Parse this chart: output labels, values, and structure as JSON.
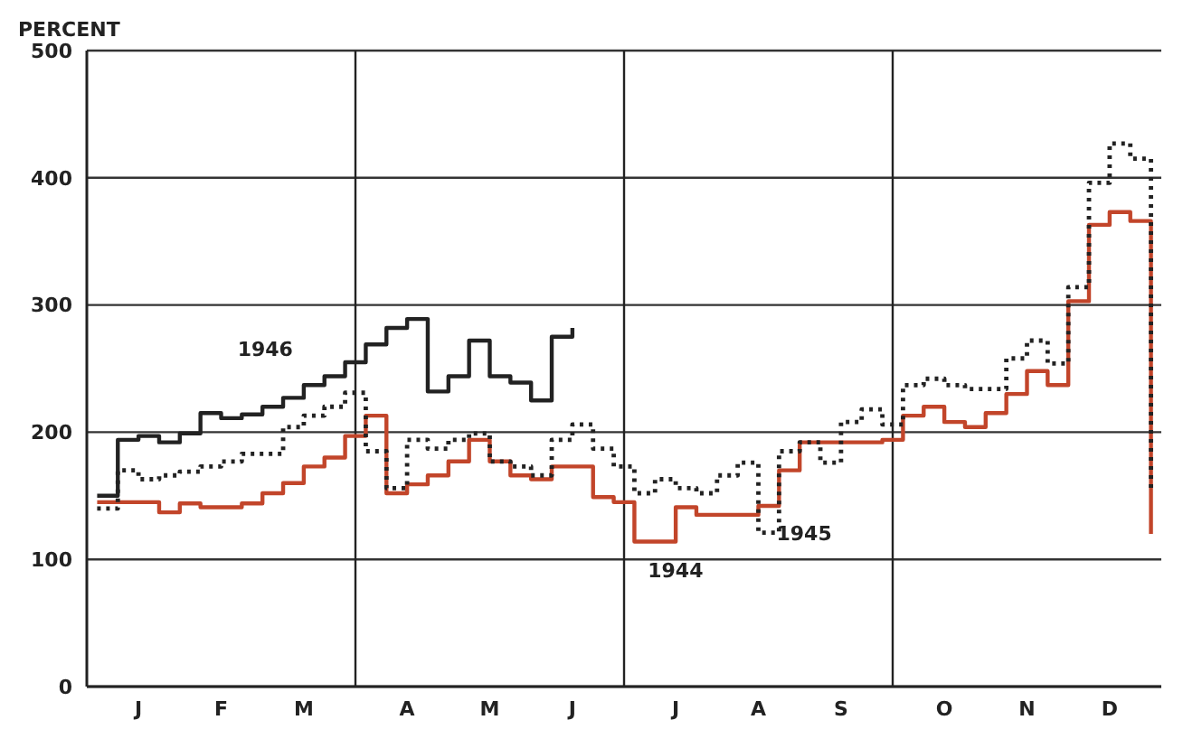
{
  "chart_data": {
    "type": "step",
    "ylabel": "PERCENT",
    "categories": [
      null,
      null,
      "J",
      null,
      null,
      null,
      "F",
      null,
      null,
      null,
      "M",
      null,
      null,
      null,
      null,
      "A",
      null,
      null,
      null,
      "M",
      null,
      null,
      null,
      "J",
      null,
      null,
      null,
      null,
      "J",
      null,
      null,
      null,
      "A",
      null,
      null,
      null,
      "S",
      null,
      null,
      null,
      null,
      "O",
      null,
      null,
      null,
      "N",
      null,
      null,
      null,
      "D",
      null,
      null
    ],
    "ylim": [
      0,
      500
    ],
    "yticks": [
      0,
      100,
      200,
      300,
      400,
      500
    ],
    "grid": "y",
    "legend": false,
    "marker": "none",
    "series": [
      {
        "name": "1944",
        "color": "#c2452a",
        "line_style": "solid",
        "values": [
          145,
          145,
          145,
          137,
          144,
          141,
          141,
          144,
          152,
          160,
          173,
          180,
          197,
          213,
          152,
          159,
          166,
          177,
          194,
          177,
          166,
          163,
          173,
          173,
          149,
          145,
          114,
          114,
          141,
          135,
          135,
          135,
          142,
          170,
          192,
          192,
          192,
          192,
          194,
          213,
          220,
          208,
          204,
          215,
          230,
          248,
          237,
          303,
          363,
          373,
          366,
          120
        ]
      },
      {
        "name": "1945",
        "color": "#222222",
        "line_style": "dotted",
        "values": [
          140,
          170,
          163,
          166,
          169,
          173,
          177,
          183,
          183,
          204,
          213,
          220,
          231,
          185,
          156,
          194,
          187,
          194,
          199,
          177,
          173,
          166,
          194,
          206,
          187,
          173,
          152,
          163,
          156,
          152,
          166,
          176,
          121,
          185,
          192,
          176,
          208,
          218,
          206,
          237,
          242,
          237,
          234,
          234,
          258,
          272,
          254,
          314,
          396,
          427,
          415,
          155
        ]
      },
      {
        "name": "1946",
        "color": "#222222",
        "line_style": "solid",
        "values": [
          150,
          194,
          197,
          192,
          199,
          215,
          211,
          214,
          220,
          227,
          237,
          244,
          255,
          269,
          282,
          289,
          232,
          244,
          272,
          244,
          239,
          225,
          275,
          282,
          null,
          null,
          null,
          null,
          null,
          null,
          null,
          null,
          null,
          null,
          null,
          null,
          null,
          null,
          null,
          null,
          null,
          null,
          null,
          null,
          null,
          null,
          null,
          null,
          null,
          null,
          null,
          null
        ]
      }
    ]
  }
}
